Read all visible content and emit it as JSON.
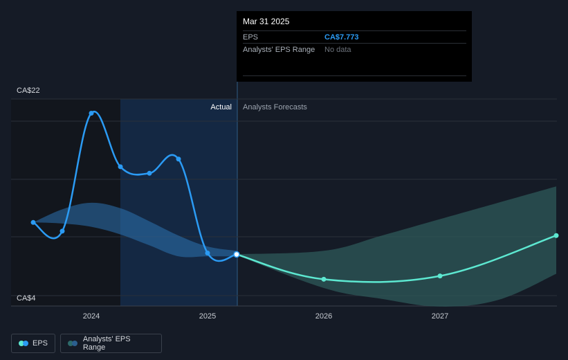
{
  "tooltip": {
    "date": "Mar 31 2025",
    "rows": [
      {
        "label": "EPS",
        "value": "CA$7.773"
      },
      {
        "label": "Analysts' EPS Range",
        "value": "No data"
      }
    ]
  },
  "regions": {
    "actual_label": "Actual",
    "forecast_label": "Analysts Forecasts"
  },
  "legend": {
    "eps_label": "EPS",
    "range_label": "Analysts' EPS Range"
  },
  "colors": {
    "eps_line": "#2b9bf4",
    "forecast_line": "#5de8d1",
    "range_past": "#2b72b0",
    "range_forecast": "#2d5a5a",
    "background": "#151b26"
  },
  "chart_data": {
    "type": "line",
    "y_min_label": "CA$4",
    "y_max_label": "CA$22",
    "ylim": [
      4,
      22
    ],
    "x_ticks": [
      {
        "label": "2024",
        "x": 2024.0
      },
      {
        "label": "2025",
        "x": 2025.0
      },
      {
        "label": "2026",
        "x": 2026.0
      },
      {
        "label": "2027",
        "x": 2027.0
      }
    ],
    "series": [
      {
        "name": "EPS",
        "points": [
          {
            "x": 2023.5,
            "y": 10.7
          },
          {
            "x": 2023.75,
            "y": 9.9
          },
          {
            "x": 2024.0,
            "y": 20.7
          },
          {
            "x": 2024.25,
            "y": 15.8
          },
          {
            "x": 2024.5,
            "y": 15.2
          },
          {
            "x": 2024.75,
            "y": 16.5
          },
          {
            "x": 2025.0,
            "y": 7.9
          },
          {
            "x": 2025.25,
            "y": 7.773
          }
        ]
      },
      {
        "name": "Forecast",
        "points": [
          {
            "x": 2025.25,
            "y": 7.773
          },
          {
            "x": 2026.0,
            "y": 5.5
          },
          {
            "x": 2027.0,
            "y": 5.8
          },
          {
            "x": 2028.0,
            "y": 9.5
          }
        ]
      }
    ],
    "range_past": {
      "x": [
        2023.5,
        2023.75,
        2024.0,
        2024.25,
        2024.5,
        2024.75,
        2025.0,
        2025.25
      ],
      "upper": [
        10.7,
        11.9,
        12.5,
        12.0,
        10.8,
        9.5,
        8.5,
        8.1
      ],
      "lower": [
        10.7,
        10.6,
        10.3,
        9.6,
        8.6,
        7.6,
        7.6,
        7.6
      ]
    },
    "range_forecast": {
      "x": [
        2025.25,
        2026.0,
        2026.5,
        2027.0,
        2027.5,
        2028.0
      ],
      "upper": [
        7.8,
        8.1,
        9.5,
        11.0,
        12.5,
        14.0
      ],
      "lower": [
        7.7,
        4.7,
        3.7,
        3.0,
        3.6,
        6.0
      ]
    }
  }
}
